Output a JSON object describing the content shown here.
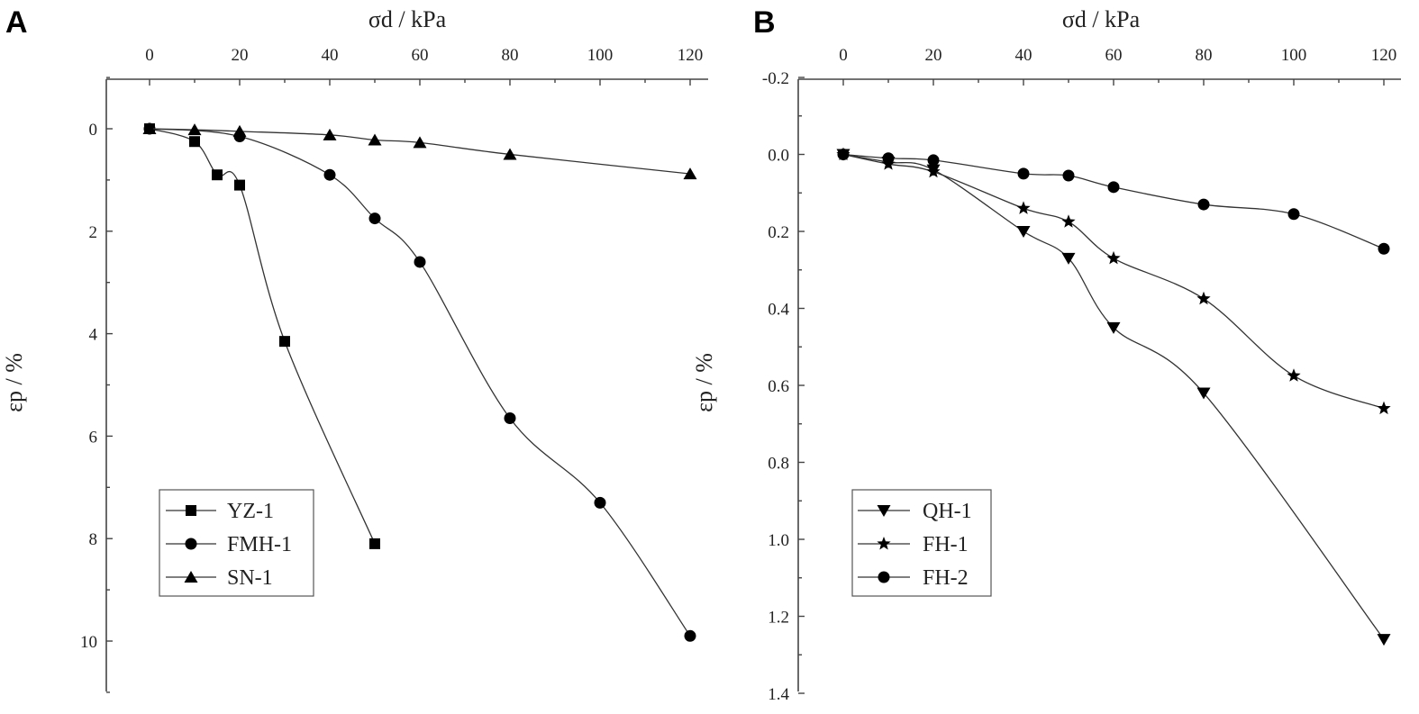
{
  "chart_data": [
    {
      "type": "line",
      "panel_label": "A",
      "title": "",
      "xlabel": "σd / kPa",
      "ylabel": "εp / %",
      "xlim": [
        -10,
        125
      ],
      "ylim": [
        -1,
        11
      ],
      "y_inverted": true,
      "x_axis_position": "top",
      "grid": false,
      "xticks": [
        0,
        20,
        40,
        60,
        80,
        100,
        120
      ],
      "yticks": [
        0,
        2,
        4,
        6,
        8,
        10
      ],
      "legend_position": "bottom-left",
      "series": [
        {
          "name": "YZ-1",
          "marker": "square",
          "x": [
            0,
            10,
            15,
            20,
            30,
            50
          ],
          "y": [
            0,
            0.25,
            0.9,
            1.1,
            4.15,
            8.1
          ]
        },
        {
          "name": "FMH-1",
          "marker": "circle",
          "x": [
            0,
            20,
            40,
            50,
            60,
            80,
            100,
            120
          ],
          "y": [
            0,
            0.15,
            0.9,
            1.75,
            2.6,
            5.65,
            7.3,
            9.9
          ]
        },
        {
          "name": "SN-1",
          "marker": "triangle-up",
          "x": [
            0,
            10,
            20,
            40,
            50,
            60,
            80,
            120
          ],
          "y": [
            0,
            0.02,
            0.05,
            0.12,
            0.22,
            0.27,
            0.5,
            0.88
          ]
        }
      ]
    },
    {
      "type": "line",
      "panel_label": "B",
      "title": "",
      "xlabel": "σd / kPa",
      "ylabel": "εp / %",
      "xlim": [
        -6,
        122
      ],
      "ylim": [
        -0.2,
        1.4
      ],
      "y_inverted": true,
      "x_axis_position": "top",
      "grid": false,
      "xticks": [
        0,
        20,
        40,
        60,
        80,
        100,
        120
      ],
      "yticks": [
        -0.2,
        0.0,
        0.2,
        0.4,
        0.6,
        0.8,
        1.0,
        1.2,
        1.4
      ],
      "ytick_labels": [
        "-0.2",
        "0.0",
        "0.2",
        "0.4",
        "0.6",
        "0.8",
        "1.0",
        "1.2",
        "1.4"
      ],
      "legend_position": "bottom-left",
      "series": [
        {
          "name": "QH-1",
          "marker": "triangle-down",
          "x": [
            0,
            10,
            20,
            40,
            50,
            60,
            80,
            120
          ],
          "y": [
            0,
            0.02,
            0.04,
            0.2,
            0.27,
            0.45,
            0.62,
            1.26
          ]
        },
        {
          "name": "FH-1",
          "marker": "star",
          "x": [
            0,
            10,
            20,
            40,
            50,
            60,
            80,
            100,
            120
          ],
          "y": [
            0,
            0.025,
            0.045,
            0.14,
            0.175,
            0.27,
            0.375,
            0.575,
            0.66
          ]
        },
        {
          "name": "FH-2",
          "marker": "circle",
          "x": [
            0,
            10,
            20,
            40,
            50,
            60,
            80,
            100,
            120
          ],
          "y": [
            0,
            0.01,
            0.015,
            0.05,
            0.055,
            0.085,
            0.13,
            0.155,
            0.245
          ]
        }
      ]
    }
  ]
}
